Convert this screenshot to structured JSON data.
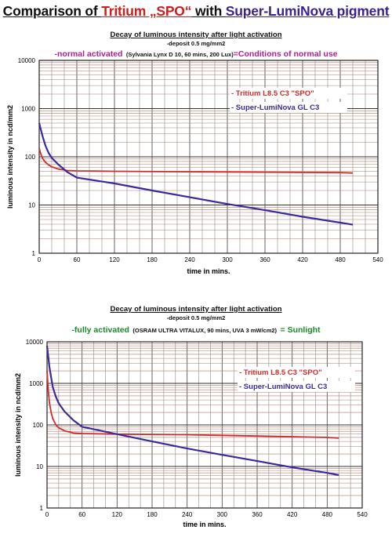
{
  "header": {
    "title_prefix": "Comparison of ",
    "title_tritium": "Tritium „SPO“",
    "title_with": " with ",
    "title_sln": "Super-LumiNova pigment"
  },
  "colors": {
    "tritium": "#d42a2a",
    "sln": "#3b2a9a",
    "green": "#1a8a2a",
    "magenta": "#b0208a"
  },
  "chart_data": [
    {
      "type": "line",
      "title": "Decay of luminous intensity after light activation",
      "deposit": "-deposit 0.5 mg/mm2",
      "condition_main": "-normal activated",
      "condition_detail": "(Sylvania Lynx D 10, 60 mins, 200 Lux)",
      "condition_end": "=Conditions of normal use",
      "xlabel": "time in mins.",
      "ylabel": "luminous intensity in ncd/mm2",
      "y_scale": "log",
      "xlim": [
        0,
        540
      ],
      "ylim": [
        1,
        10000
      ],
      "x_ticks": [
        "0",
        "60",
        "120",
        "180",
        "240",
        "300",
        "360",
        "420",
        "480",
        "540"
      ],
      "y_ticks": [
        "1",
        "10",
        "100",
        "1000",
        "10000"
      ],
      "legend_position": "right",
      "series": [
        {
          "name": "- Tritium L8.5 C3 \"SPO\"",
          "color": "tritium",
          "points": [
            [
              0,
              150
            ],
            [
              3,
              110
            ],
            [
              6,
              90
            ],
            [
              10,
              77
            ],
            [
              15,
              68
            ],
            [
              20,
              62
            ],
            [
              30,
              56
            ],
            [
              45,
              52
            ],
            [
              60,
              51
            ],
            [
              120,
              50
            ],
            [
              240,
              49
            ],
            [
              360,
              48
            ],
            [
              480,
              47
            ],
            [
              500,
              46
            ]
          ]
        },
        {
          "name": "- Super-LumiNova GL C3",
          "color": "sln",
          "points": [
            [
              0,
              500
            ],
            [
              3,
              350
            ],
            [
              6,
              250
            ],
            [
              10,
              170
            ],
            [
              15,
              120
            ],
            [
              20,
              95
            ],
            [
              30,
              70
            ],
            [
              45,
              48
            ],
            [
              60,
              37
            ],
            [
              120,
              28
            ],
            [
              180,
              20
            ],
            [
              240,
              14.5
            ],
            [
              300,
              10.5
            ],
            [
              360,
              7.8
            ],
            [
              420,
              5.7
            ],
            [
              480,
              4.3
            ],
            [
              500,
              3.9
            ]
          ]
        }
      ]
    },
    {
      "type": "line",
      "title": "Decay of luminous intensity after light activation",
      "deposit": "-deposit 0.5 mg/mm2",
      "condition_main": "-fully activated",
      "condition_detail": "(OSRAM ULTRA VITALUX, 90 mins, UVA 3 mW/cm2)",
      "condition_end": "= Sunlight",
      "xlabel": "time in mins.",
      "ylabel": "luminous intensity in ncd/mm2",
      "y_scale": "log",
      "xlim": [
        0,
        540
      ],
      "ylim": [
        1,
        10000
      ],
      "x_ticks": [
        "0",
        "60",
        "120",
        "180",
        "240",
        "300",
        "360",
        "420",
        "480",
        "540"
      ],
      "y_ticks": [
        "1",
        "10",
        "100",
        "1000",
        "10000"
      ],
      "legend_position": "right",
      "series": [
        {
          "name": "- Tritium L8.5 C3 \"SPO\"",
          "color": "tritium",
          "points": [
            [
              0,
              2000
            ],
            [
              2,
              700
            ],
            [
              4,
              350
            ],
            [
              7,
              200
            ],
            [
              10,
              140
            ],
            [
              15,
              100
            ],
            [
              20,
              85
            ],
            [
              30,
              72
            ],
            [
              45,
              64
            ],
            [
              60,
              62
            ],
            [
              120,
              60
            ],
            [
              240,
              58
            ],
            [
              360,
              54
            ],
            [
              480,
              50
            ],
            [
              500,
              48
            ]
          ]
        },
        {
          "name": "- Super-LumiNova GL C3",
          "color": "sln",
          "points": [
            [
              0,
              8000
            ],
            [
              2,
              4500
            ],
            [
              4,
              2500
            ],
            [
              7,
              1400
            ],
            [
              10,
              800
            ],
            [
              15,
              480
            ],
            [
              20,
              330
            ],
            [
              30,
              210
            ],
            [
              45,
              130
            ],
            [
              60,
              90
            ],
            [
              120,
              60
            ],
            [
              180,
              40
            ],
            [
              240,
              27
            ],
            [
              300,
              19
            ],
            [
              360,
              13.5
            ],
            [
              420,
              9.5
            ],
            [
              480,
              7
            ],
            [
              500,
              6.2
            ]
          ]
        }
      ]
    }
  ]
}
